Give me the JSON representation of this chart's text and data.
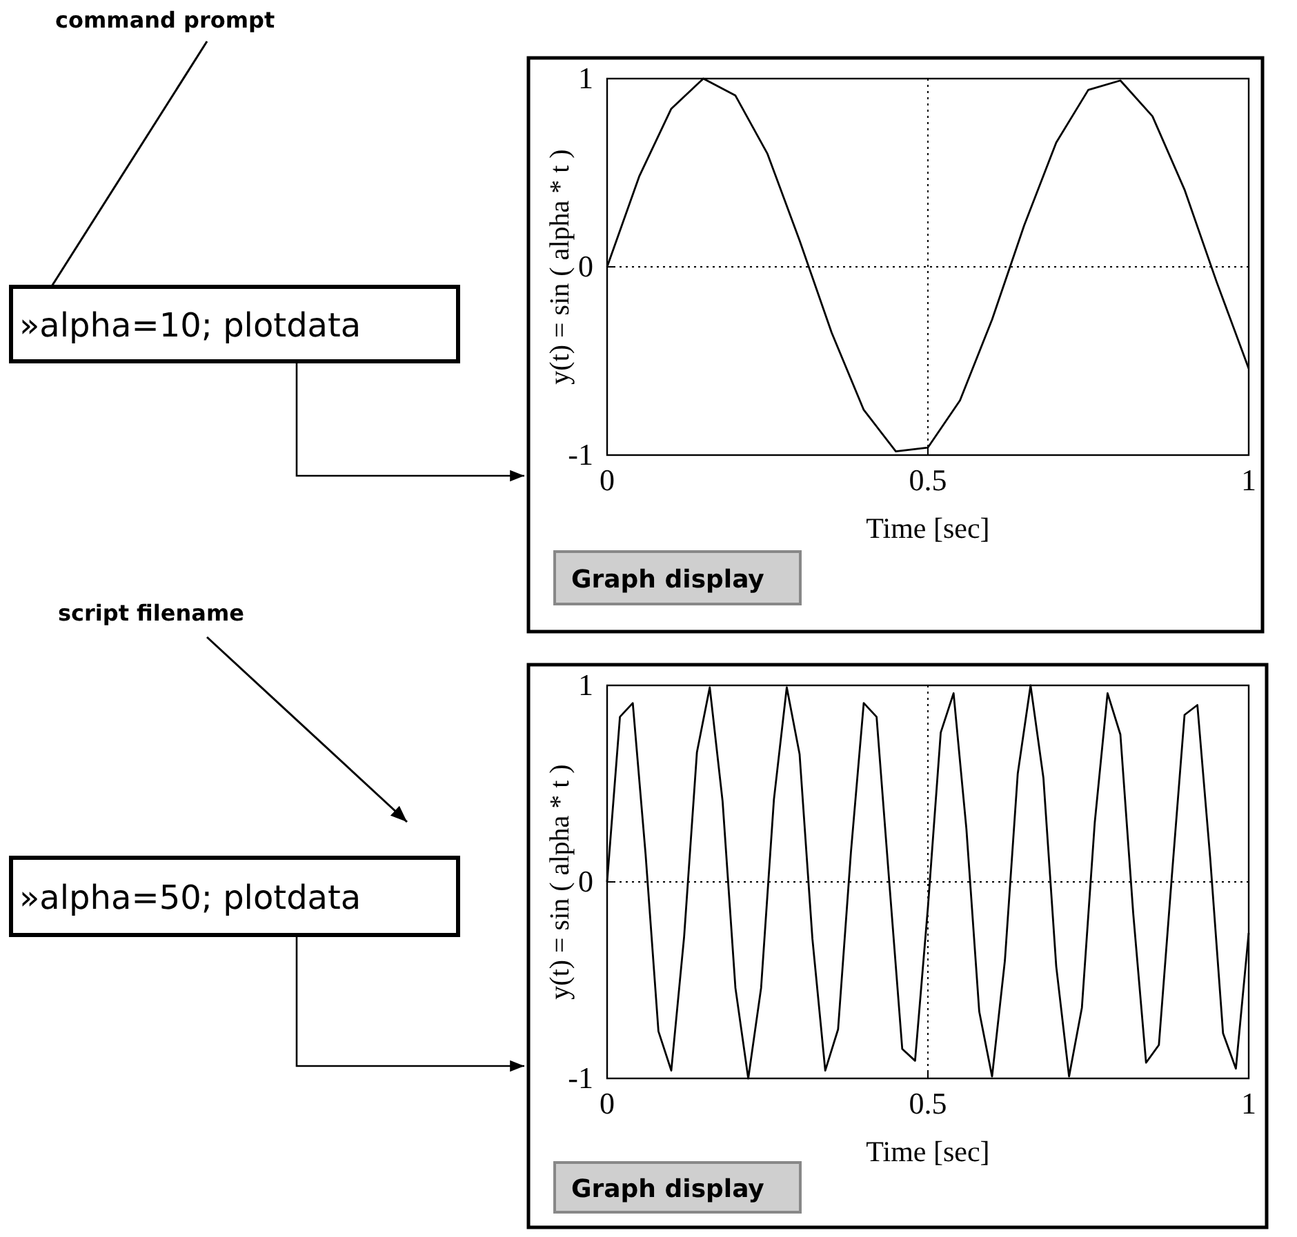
{
  "chart_data": [
    {
      "type": "line",
      "xlabel": "Time [sec]",
      "ylabel": "y(t) = sin ( alpha * t )",
      "color": "#000000",
      "grid": true,
      "line_style": "solid",
      "xlim": [
        0,
        1
      ],
      "ylim": [
        -1,
        1
      ],
      "xticks": [
        0,
        0.5,
        1
      ],
      "yticks": [
        -1,
        0,
        1
      ],
      "annotations": [
        "command prompt",
        "»alpha=10; plotdata",
        "Graph display"
      ],
      "x": [
        0,
        0.05,
        0.1,
        0.15,
        0.2,
        0.25,
        0.3,
        0.35,
        0.4,
        0.45,
        0.5,
        0.55,
        0.6,
        0.65,
        0.7,
        0.75,
        0.8,
        0.85,
        0.9,
        0.95,
        1
      ],
      "values": [
        0,
        0.48,
        0.84,
        1.0,
        0.91,
        0.6,
        0.14,
        -0.35,
        -0.76,
        -0.98,
        -0.96,
        -0.71,
        -0.28,
        0.22,
        0.66,
        0.94,
        0.99,
        0.8,
        0.41,
        -0.08,
        -0.54
      ]
    },
    {
      "type": "line",
      "xlabel": "Time [sec]",
      "ylabel": "y(t) = sin ( alpha * t )",
      "color": "#000000",
      "grid": true,
      "line_style": "solid",
      "xlim": [
        0,
        1
      ],
      "ylim": [
        -1,
        1
      ],
      "xticks": [
        0,
        0.5,
        1
      ],
      "yticks": [
        -1,
        0,
        1
      ],
      "annotations": [
        "script filename",
        "»alpha=50; plotdata",
        "Graph display"
      ],
      "x": [
        0,
        0.02,
        0.04,
        0.06,
        0.08,
        0.1,
        0.12,
        0.14,
        0.16,
        0.18,
        0.2,
        0.22,
        0.24,
        0.26,
        0.28,
        0.3,
        0.32,
        0.34,
        0.36,
        0.38,
        0.4,
        0.42,
        0.44,
        0.46,
        0.48,
        0.5,
        0.52,
        0.54,
        0.56,
        0.58,
        0.6,
        0.62,
        0.64,
        0.66,
        0.68,
        0.7,
        0.72,
        0.74,
        0.76,
        0.78,
        0.8,
        0.82,
        0.84,
        0.86,
        0.88,
        0.9,
        0.92,
        0.94,
        0.96,
        0.98,
        1
      ],
      "values": [
        0,
        0.84,
        0.91,
        0.14,
        -0.76,
        -0.96,
        -0.28,
        0.66,
        0.99,
        0.41,
        -0.54,
        -1.0,
        -0.54,
        0.42,
        0.99,
        0.65,
        -0.29,
        -0.96,
        -0.75,
        0.15,
        0.91,
        0.84,
        -0.01,
        -0.85,
        -0.91,
        -0.13,
        0.76,
        0.96,
        0.27,
        -0.66,
        -0.99,
        -0.4,
        0.55,
        1.0,
        0.53,
        -0.43,
        -0.99,
        -0.64,
        0.3,
        0.96,
        0.75,
        -0.16,
        -0.92,
        -0.83,
        0.02,
        0.85,
        0.9,
        0.12,
        -0.77,
        -0.95,
        -0.26
      ]
    }
  ]
}
